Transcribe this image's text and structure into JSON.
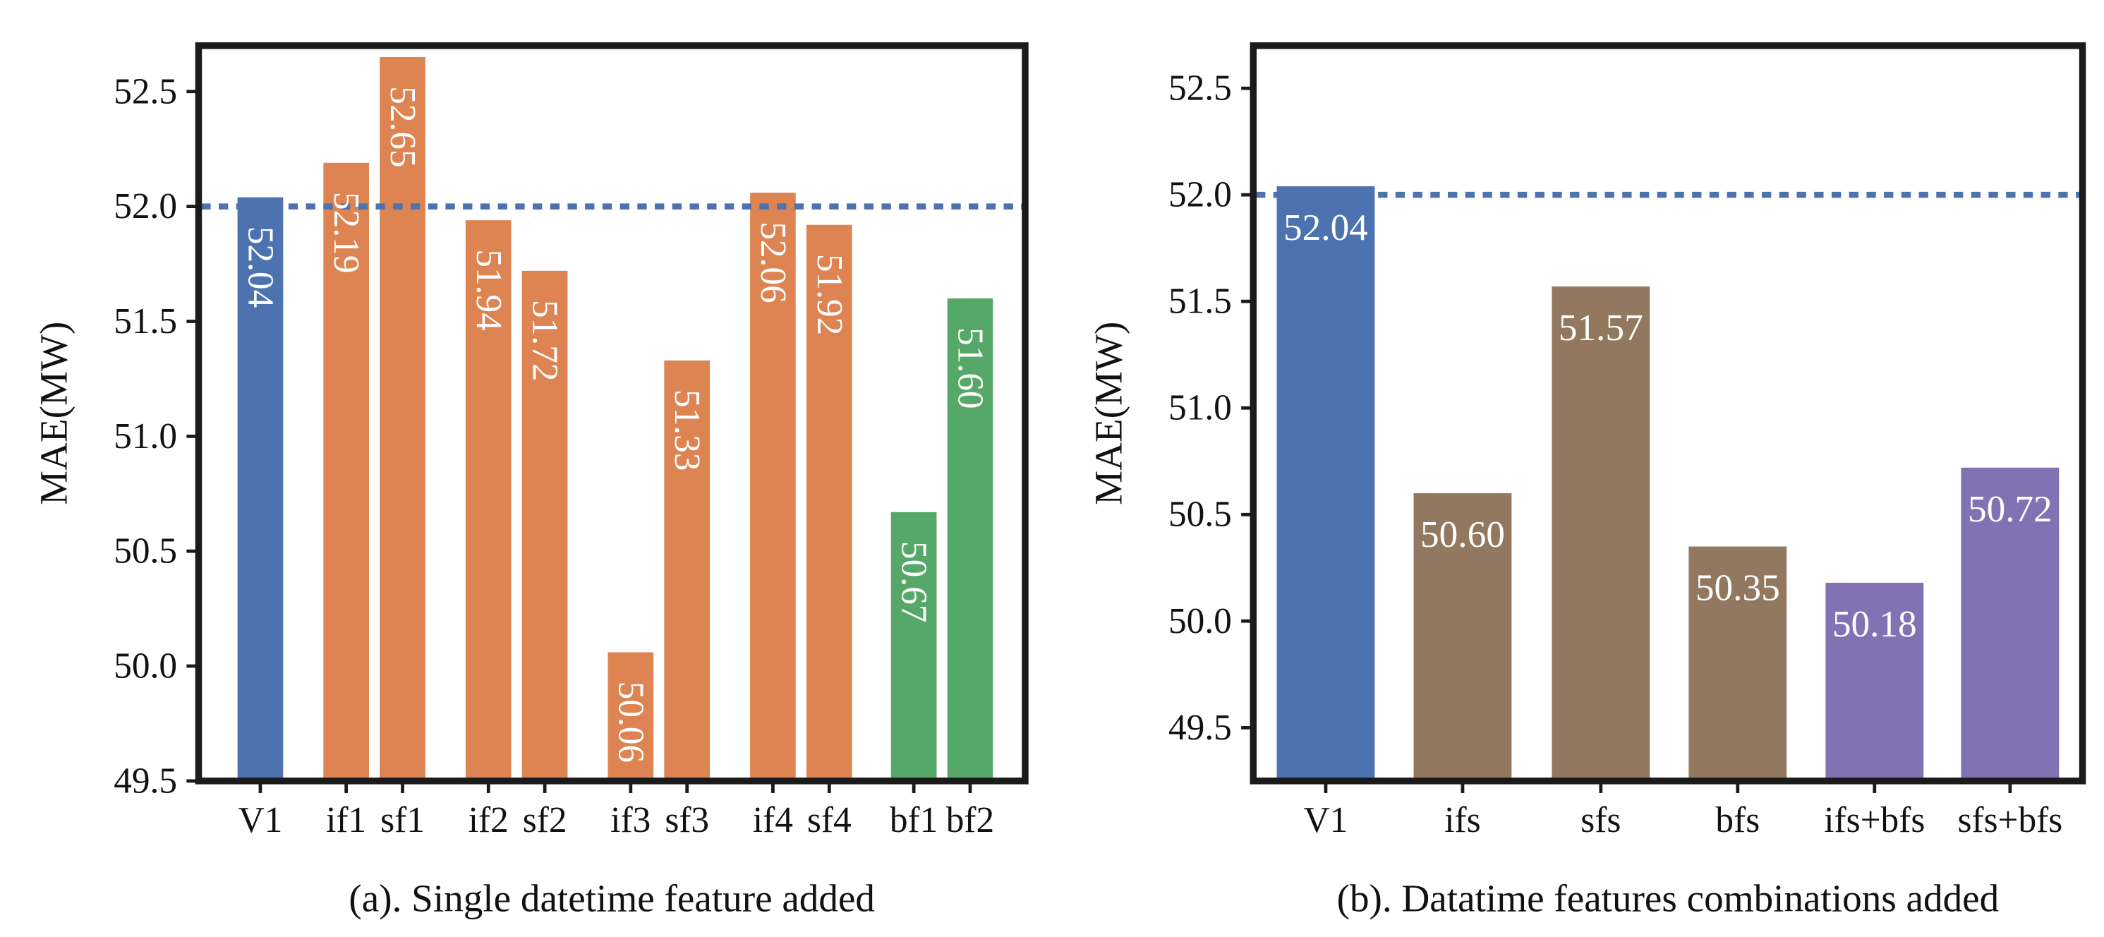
{
  "chart_data": [
    {
      "type": "bar",
      "caption": "(a). Single datetime feature added",
      "ylabel": "MAE(MW)",
      "xlabel": "",
      "ylim": [
        49.5,
        52.7
      ],
      "yticks": [
        "49.5",
        "50.0",
        "50.5",
        "51.0",
        "51.5",
        "52.0",
        "52.5"
      ],
      "reference_line": {
        "value": 52.0,
        "style": "dotted",
        "color": "#4c72b0"
      },
      "label_orientation": "vertical",
      "grid": false,
      "categories": [
        "V1",
        "if1",
        "sf1",
        "if2",
        "sf2",
        "if3",
        "sf3",
        "if4",
        "sf4",
        "bf1",
        "bf2"
      ],
      "values": [
        52.04,
        52.19,
        52.65,
        51.94,
        51.72,
        50.06,
        51.33,
        52.06,
        51.92,
        50.67,
        51.6
      ],
      "labels": [
        "52.04",
        "52.19",
        "52.65",
        "51.94",
        "51.72",
        "50.06",
        "51.33",
        "52.06",
        "51.92",
        "50.67",
        "51.60"
      ],
      "colors": [
        "#4c72b0",
        "#dd8452",
        "#dd8452",
        "#dd8452",
        "#dd8452",
        "#dd8452",
        "#dd8452",
        "#dd8452",
        "#dd8452",
        "#55a868",
        "#55a868"
      ]
    },
    {
      "type": "bar",
      "caption": "(b). Datatime features combinations added",
      "ylabel": "MAE(MW)",
      "xlabel": "",
      "ylim": [
        49.25,
        52.7
      ],
      "yticks": [
        "49.5",
        "50.0",
        "50.5",
        "51.0",
        "51.5",
        "52.0",
        "52.5"
      ],
      "reference_line": {
        "value": 52.0,
        "style": "dotted",
        "color": "#4c72b0"
      },
      "label_orientation": "horizontal",
      "grid": false,
      "categories": [
        "V1",
        "ifs",
        "sfs",
        "bfs",
        "ifs+bfs",
        "sfs+bfs"
      ],
      "values": [
        52.04,
        50.6,
        51.57,
        50.35,
        50.18,
        50.72
      ],
      "labels": [
        "52.04",
        "50.60",
        "51.57",
        "50.35",
        "50.18",
        "50.72"
      ],
      "colors": [
        "#4c72b0",
        "#937860",
        "#937860",
        "#937860",
        "#8172b3",
        "#8172b3"
      ]
    }
  ]
}
